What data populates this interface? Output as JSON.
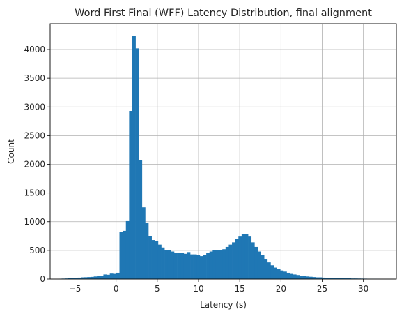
{
  "chart_data": {
    "type": "bar",
    "title": "Word First Final (WFF) Latency Distribution, final alignment",
    "xlabel": "Latency (s)",
    "ylabel": "Count",
    "xlim": [
      -8.0,
      34.0
    ],
    "ylim": [
      0,
      4450
    ],
    "xticks": [
      -5,
      0,
      5,
      10,
      15,
      20,
      25,
      30
    ],
    "yticks": [
      0,
      500,
      1000,
      1500,
      2000,
      2500,
      3000,
      3500,
      4000
    ],
    "grid": true,
    "bar_color": "#1f77b4",
    "bin_start": -7.0,
    "bin_width": 0.39,
    "values": [
      5,
      8,
      10,
      15,
      18,
      22,
      25,
      30,
      32,
      35,
      38,
      45,
      55,
      60,
      80,
      75,
      95,
      90,
      110,
      820,
      840,
      1010,
      2930,
      4240,
      4020,
      2070,
      1250,
      980,
      750,
      680,
      660,
      600,
      550,
      500,
      500,
      480,
      460,
      460,
      450,
      440,
      470,
      430,
      430,
      420,
      400,
      420,
      450,
      480,
      500,
      510,
      500,
      520,
      560,
      600,
      640,
      700,
      740,
      780,
      780,
      740,
      640,
      560,
      480,
      420,
      340,
      290,
      240,
      200,
      170,
      150,
      130,
      110,
      90,
      80,
      70,
      60,
      50,
      45,
      40,
      35,
      30,
      30,
      25,
      22,
      20,
      18,
      16,
      15,
      14,
      12,
      12,
      10,
      10,
      9,
      8,
      7,
      6,
      5,
      5,
      4
    ]
  }
}
